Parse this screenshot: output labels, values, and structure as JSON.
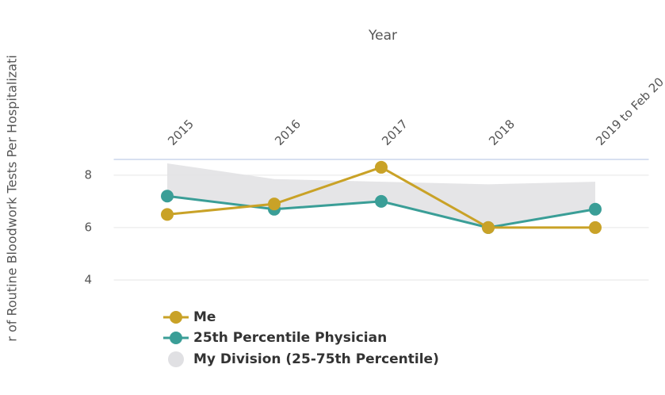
{
  "chart_data": {
    "type": "line",
    "x_label": "Year",
    "y_label": "r of Routine Bloodwork Tests Per Hospitalizati",
    "categories": [
      "2015",
      "2016",
      "2017",
      "2018",
      "2019 to Feb 20"
    ],
    "series": [
      {
        "name": "Me",
        "color": "#c9a227",
        "values": [
          6.5,
          6.9,
          8.3,
          6.0,
          6.0
        ]
      },
      {
        "name": "25th Percentile Physician",
        "color": "#3a9e97",
        "values": [
          7.2,
          6.7,
          7.0,
          6.0,
          6.7
        ]
      }
    ],
    "range": {
      "name": "My Division (25-75th Percentile)",
      "color": "#e0e0e3",
      "low": [
        7.2,
        6.7,
        7.0,
        6.0,
        6.7
      ],
      "high": [
        8.45,
        7.85,
        7.75,
        7.65,
        7.75
      ]
    },
    "ylim": [
      4,
      8.6
    ],
    "yticks": [
      4,
      6,
      8
    ],
    "grid": true,
    "legend": "bottom-left"
  }
}
